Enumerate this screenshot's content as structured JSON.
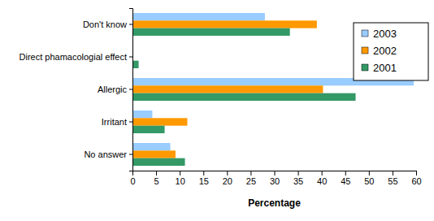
{
  "chart_data": {
    "type": "bar",
    "orientation": "horizontal",
    "categories": [
      "Don't know",
      "Direct phamacologial effect",
      "Allergic",
      "Irritant",
      "No answer"
    ],
    "series": [
      {
        "name": "2003",
        "color": "#99ccff",
        "values": [
          28,
          0,
          59.5,
          4.2,
          8
        ]
      },
      {
        "name": "2002",
        "color": "#ff9900",
        "values": [
          39,
          0,
          40.3,
          11.6,
          9.1
        ]
      },
      {
        "name": "2001",
        "color": "#339966",
        "values": [
          33.3,
          1.3,
          47.2,
          6.8,
          11.1
        ]
      }
    ],
    "x_label": "Percentage",
    "xlim": [
      0,
      60
    ],
    "xticks": [
      0,
      5,
      10,
      15,
      20,
      25,
      30,
      35,
      40,
      45,
      50,
      55,
      60
    ],
    "legend": "right",
    "grid": false
  }
}
